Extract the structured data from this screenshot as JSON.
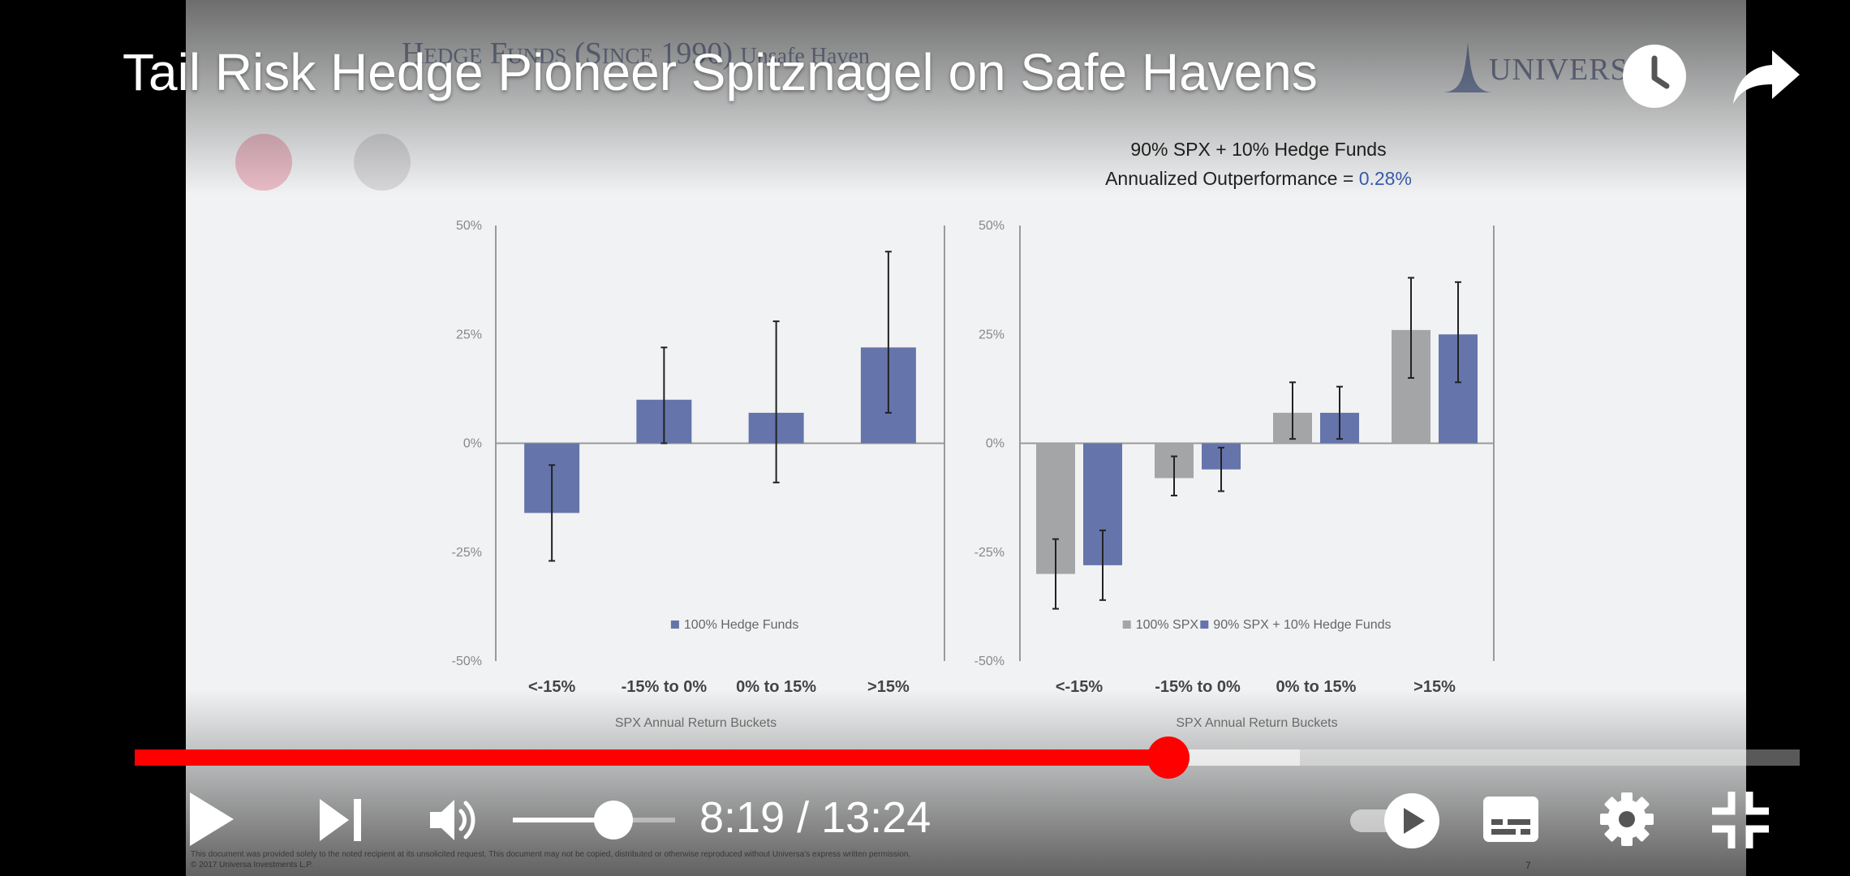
{
  "player": {
    "title": "Tail Risk Hedge Pioneer Spitznagel on Safe Havens",
    "time_current": "8:19",
    "time_total": "13:24",
    "time_display": "8:19 / 13:24",
    "progress_fraction": 0.621,
    "buffered_fraction": 0.7,
    "volume_fraction": 0.62,
    "accent_color": "#ff0000",
    "icons": [
      "watch-later-icon",
      "share-icon",
      "play-icon",
      "next-icon",
      "volume-icon",
      "autoplay-toggle-icon",
      "captions-icon",
      "settings-icon",
      "exit-fullscreen-icon"
    ]
  },
  "slide": {
    "title_main": "Hedge Funds",
    "title_paren": "(Since 1990)",
    "title_rest": "Unsafe Haven",
    "logo_text": "UNIVERSA",
    "disclaimer_line1": "This document was provided solely to the noted recipient at its unsolicited request. This document may not be copied, distributed or otherwise reproduced without Universa's express written permission.",
    "disclaimer_line2": "© 2017 Universa Investments L.P.",
    "page_number": "7"
  },
  "chart_data": [
    {
      "type": "bar",
      "title": "",
      "xlabel": "SPX Annual Return Buckets",
      "ylabel": "",
      "ylim": [
        -50,
        50
      ],
      "y_ticks": [
        "50%",
        "25%",
        "0%",
        "-25%",
        "-50%"
      ],
      "categories": [
        "<-15%",
        "-15% to 0%",
        "0% to 15%",
        ">15%"
      ],
      "series": [
        {
          "name": "100% Hedge Funds",
          "color": "#6575ab",
          "values": [
            -16,
            10,
            7,
            22
          ],
          "error_low": [
            -27,
            0,
            -9,
            7
          ],
          "error_high": [
            -5,
            22,
            28,
            44
          ]
        }
      ],
      "legend_position": "bottom-center",
      "grid": false
    },
    {
      "type": "bar",
      "title": "90% SPX + 10% Hedge Funds",
      "subtitle_prefix": "Annualized Outperformance = ",
      "subtitle_value": "0.28%",
      "xlabel": "SPX Annual Return Buckets",
      "ylabel": "",
      "ylim": [
        -50,
        50
      ],
      "y_ticks": [
        "50%",
        "25%",
        "0%",
        "-25%",
        "-50%"
      ],
      "categories": [
        "<-15%",
        "-15% to 0%",
        "0% to 15%",
        ">15%"
      ],
      "series": [
        {
          "name": "100% SPX",
          "color": "#a3a5a7",
          "values": [
            -30,
            -8,
            7,
            26
          ],
          "error_low": [
            -38,
            -12,
            1,
            15
          ],
          "error_high": [
            -22,
            -3,
            14,
            38
          ]
        },
        {
          "name": "90% SPX + 10% Hedge Funds",
          "color": "#6575ab",
          "values": [
            -28,
            -6,
            7,
            25
          ],
          "error_low": [
            -36,
            -11,
            1,
            14
          ],
          "error_high": [
            -20,
            -1,
            13,
            37
          ]
        }
      ],
      "legend_position": "bottom-center",
      "grid": false
    }
  ]
}
